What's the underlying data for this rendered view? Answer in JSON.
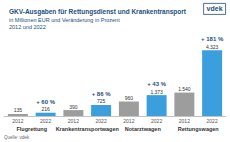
{
  "chart_data": {
    "type": "bar",
    "title": "GKV-Ausgaben für Rettungsdienst und Krankentransport",
    "subtitle": [
      "in Millionen EUR und Veränderung in Prozent",
      "2012 und 2022"
    ],
    "logo": "vdek",
    "source": "Quelle: vdek",
    "categories": [
      "Flugrettung",
      "Krankentransportwagen",
      "Notarztwagen",
      "Rettungswagen"
    ],
    "series": [
      {
        "name": "2012",
        "color": "#9d9d9d",
        "values": [
          135,
          390,
          960,
          1540
        ],
        "value_labels": [
          "135",
          "390",
          "960",
          "1.540"
        ]
      },
      {
        "name": "2022",
        "color": "#3a9fdc",
        "values": [
          216,
          725,
          1373,
          4323
        ],
        "value_labels": [
          "216",
          "725",
          "1.373",
          "4.323"
        ]
      }
    ],
    "annotations": [
      "+ 60 %",
      "+ 86 %",
      "+ 43 %",
      "+ 181 %"
    ],
    "ylim": [
      0,
      5000
    ],
    "yticks": [
      0,
      5000
    ],
    "grid": false,
    "data_labels": true,
    "tick_labels": "x"
  }
}
